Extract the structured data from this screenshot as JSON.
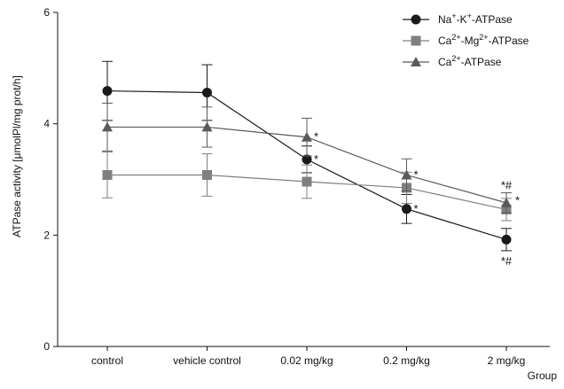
{
  "chart_data": {
    "type": "line",
    "title": "",
    "xlabel": "Group",
    "ylabel": "ATPase activity [μmolPl/mg prot/h]",
    "ylim": [
      0,
      6
    ],
    "yticks": [
      0,
      2,
      4,
      6
    ],
    "categories": [
      "control",
      "vehicle control",
      "0.02 mg/kg",
      "0.2 mg/kg",
      "2 mg/kg"
    ],
    "grid": false,
    "legend_position": "top-right",
    "series": [
      {
        "name": "Na⁺-K⁺-ATPase",
        "legend_parts": [
          [
            "Na",
            ""
          ],
          [
            "+",
            "sup"
          ],
          [
            "-K",
            ""
          ],
          [
            "+",
            "sup"
          ],
          [
            "-ATPase",
            ""
          ]
        ],
        "marker": "circle",
        "color": "#1a1a1a",
        "values": [
          4.59,
          4.56,
          3.36,
          2.47,
          1.92
        ],
        "errors": [
          0.53,
          0.5,
          0.24,
          0.26,
          0.2
        ],
        "annotations": [
          "",
          "",
          "*",
          "*",
          "*#"
        ],
        "annotation_pos": [
          "",
          "",
          "right",
          "right",
          "below"
        ]
      },
      {
        "name": "Ca²⁺-Mg²⁺-ATPase",
        "legend_parts": [
          [
            "Ca",
            ""
          ],
          [
            "2+",
            "sup"
          ],
          [
            "-Mg",
            ""
          ],
          [
            "2+",
            "sup"
          ],
          [
            "-ATPase",
            ""
          ]
        ],
        "marker": "square",
        "color": "#7f7f7f",
        "values": [
          3.08,
          3.08,
          2.96,
          2.85,
          2.46
        ],
        "errors": [
          0.41,
          0.38,
          0.3,
          0.28,
          0.2
        ],
        "annotations": [
          "",
          "",
          "",
          "",
          ""
        ],
        "annotation_pos": [
          "",
          "",
          "",
          "",
          ""
        ]
      },
      {
        "name": "Ca²⁺-ATPase",
        "legend_parts": [
          [
            "Ca",
            ""
          ],
          [
            "2+",
            "sup"
          ],
          [
            "-ATPase",
            ""
          ]
        ],
        "marker": "triangle",
        "color": "#5a5a5a",
        "values": [
          3.94,
          3.94,
          3.76,
          3.08,
          2.58
        ],
        "errors": [
          0.43,
          0.36,
          0.34,
          0.29,
          0.18
        ],
        "annotations": [
          "",
          "",
          "*",
          "*",
          "*#"
        ],
        "annotation_pos": [
          "",
          "",
          "right",
          "right",
          "above"
        ]
      }
    ],
    "extra_annotations": [
      {
        "text": "*",
        "category": 4,
        "series": 1,
        "pos": "right"
      }
    ]
  }
}
